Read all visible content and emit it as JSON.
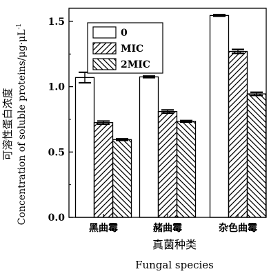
{
  "chart_data": {
    "type": "bar",
    "categories": [
      "黑曲霉",
      "赭曲霉",
      "杂色曲霉"
    ],
    "series": [
      {
        "name": "0",
        "values": [
          1.07,
          1.075,
          1.545
        ],
        "errors": [
          0.04,
          0.006,
          0.006
        ]
      },
      {
        "name": "MIC",
        "values": [
          0.725,
          0.81,
          1.27
        ],
        "errors": [
          0.012,
          0.012,
          0.015
        ]
      },
      {
        "name": "2MIC",
        "values": [
          0.595,
          0.735,
          0.945
        ],
        "errors": [
          0.006,
          0.006,
          0.012
        ]
      }
    ],
    "ylim": [
      0,
      1.6
    ],
    "yticks": [
      0.0,
      0.5,
      1.0,
      1.5
    ],
    "ytick_labels": [
      "0.0",
      "0.5",
      "1.0",
      "1.5"
    ],
    "ylabel_cn": "可溶性蛋白浓度",
    "ylabel_en": "Concentration of soluble proteins/μg·μL",
    "ylabel_unit_exp": "-1",
    "xlabel_cn": "真菌种类",
    "xlabel_en": "Fungal species",
    "legend_position": "top-left",
    "patterns": [
      "none",
      "forward-hatch",
      "back-hatch"
    ],
    "bar_fill": "#ffffff",
    "stroke_color": "#000000"
  }
}
